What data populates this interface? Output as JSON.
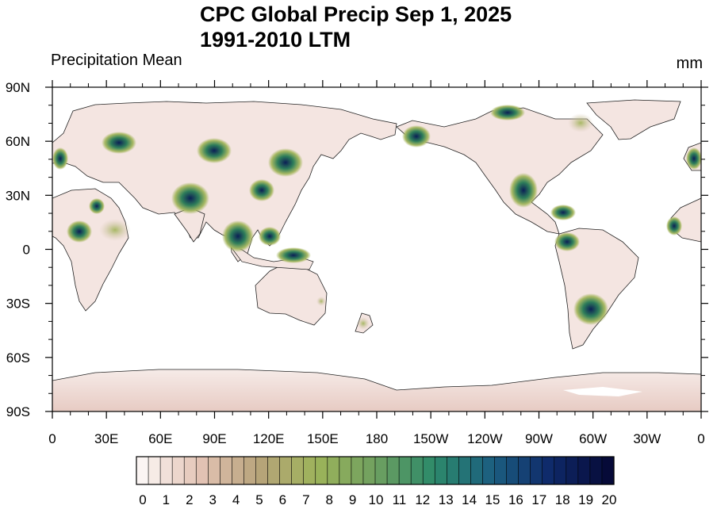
{
  "title_line1": "CPC Global Precip Sep 1, 2025",
  "title_line2": "1991-2010 LTM",
  "left_label": "Precipitation Mean",
  "units_label": "mm",
  "lat_labels": [
    "90N",
    "60N",
    "30N",
    "0",
    "30S",
    "60S",
    "90S"
  ],
  "lat_values": [
    90,
    60,
    30,
    0,
    -30,
    -60,
    -90
  ],
  "lon_labels": [
    "0",
    "30E",
    "60E",
    "90E",
    "120E",
    "150E",
    "180",
    "150W",
    "120W",
    "90W",
    "60W",
    "30W",
    "0"
  ],
  "lon_values": [
    0,
    30,
    60,
    90,
    120,
    150,
    180,
    210,
    240,
    270,
    300,
    330,
    360
  ],
  "colorbar": {
    "labels": [
      "0",
      "1",
      "2",
      "3",
      "4",
      "5",
      "6",
      "7",
      "8",
      "9",
      "10",
      "11",
      "12",
      "13",
      "14",
      "15",
      "16",
      "17",
      "18",
      "19",
      "20"
    ],
    "min": 0,
    "max": 20,
    "levels": 40,
    "color_stops": [
      "#fbf5f3",
      "#e3c3b4",
      "#b7a37a",
      "#9db35a",
      "#6fa060",
      "#2d8a6a",
      "#1c5f80",
      "#0f2a6a",
      "#060a38"
    ]
  },
  "colors": {
    "land": "#f4e5e1",
    "ocean": "#ffffff",
    "wet_mid": "#a7b863",
    "wet_high": "#2e7d5a",
    "wet_max": "#0b1f55"
  }
}
